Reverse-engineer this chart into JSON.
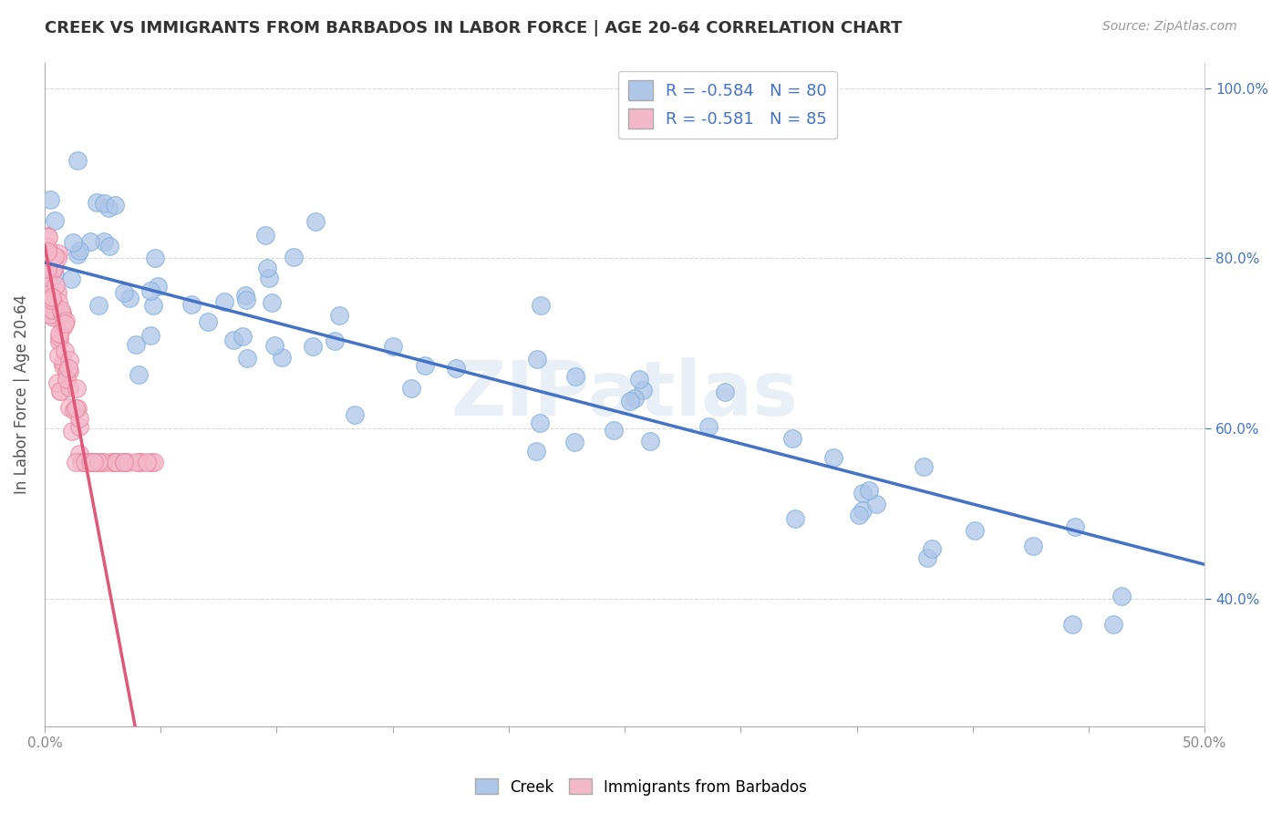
{
  "title": "CREEK VS IMMIGRANTS FROM BARBADOS IN LABOR FORCE | AGE 20-64 CORRELATION CHART",
  "source": "Source: ZipAtlas.com",
  "ylabel": "In Labor Force | Age 20-64",
  "x_min": 0.0,
  "x_max": 0.5,
  "y_min": 0.25,
  "y_max": 1.03,
  "right_y_ticks": [
    0.4,
    0.6,
    0.8,
    1.0
  ],
  "right_y_labels": [
    "40.0%",
    "60.0%",
    "80.0%",
    "100.0%"
  ],
  "legend_R_creek": "-0.584",
  "legend_N_creek": "80",
  "legend_R_barbados": "-0.581",
  "legend_N_barbados": "85",
  "creek_color": "#aec6e8",
  "barbados_color": "#f4b8cb",
  "creek_edge_color": "#7aabdb",
  "barbados_edge_color": "#e8849a",
  "creek_line_color": "#4472c4",
  "barbados_line_color": "#e05878",
  "background_color": "#ffffff",
  "grid_color": "#d8d8d8",
  "watermark": "ZIPatlas",
  "title_color": "#333333",
  "source_color": "#999999",
  "ylabel_color": "#555555",
  "tick_color": "#888888",
  "right_tick_color": "#4472c4",
  "legend_text_color": "#4472c4",
  "creek_line_intercept": 0.795,
  "creek_line_slope": -0.71,
  "barbados_line_intercept": 0.815,
  "barbados_line_slope": -14.5
}
